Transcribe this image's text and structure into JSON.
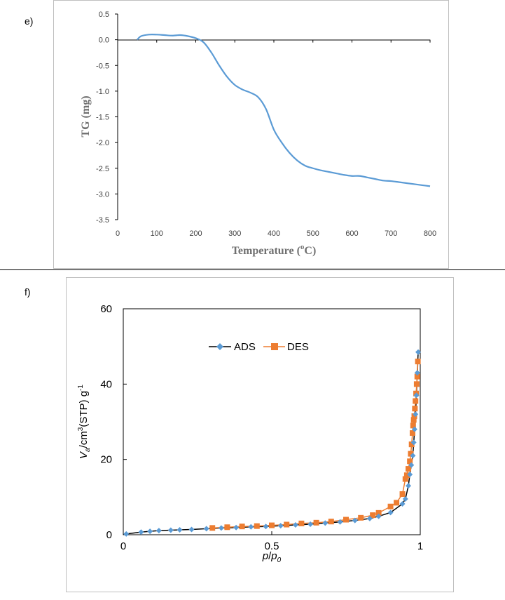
{
  "panels": {
    "e_label": "e)",
    "f_label": "f)"
  },
  "colors": {
    "tg_line": "#5B9BD5",
    "ads": "#5B9BD5",
    "des": "#ED7D31",
    "ads_line": "#000000",
    "frame": "#BFBFBF"
  },
  "chart_data": [
    {
      "type": "line",
      "title": "",
      "xlabel": "Temperature (oC)",
      "xlabel_parts": {
        "pre": "Temperature (",
        "sup": "o",
        "post": "C)"
      },
      "ylabel": "TG (mg)",
      "xlim": [
        0,
        800
      ],
      "ylim": [
        -3.5,
        0.5
      ],
      "x_ticks": [
        "0",
        "100",
        "200",
        "300",
        "400",
        "500",
        "600",
        "700",
        "800"
      ],
      "y_ticks": [
        "0.5",
        "0.0",
        "-0.5",
        "-1.0",
        "-1.5",
        "-2.0",
        "-2.5",
        "-3.0",
        "-3.5"
      ],
      "series": [
        {
          "name": "TG",
          "x": [
            50,
            60,
            80,
            100,
            120,
            140,
            160,
            180,
            200,
            220,
            240,
            260,
            280,
            300,
            320,
            340,
            360,
            380,
            400,
            420,
            440,
            460,
            480,
            500,
            520,
            540,
            560,
            580,
            600,
            620,
            640,
            660,
            680,
            700,
            720,
            740,
            760,
            780,
            800
          ],
          "y": [
            0.0,
            0.07,
            0.1,
            0.1,
            0.09,
            0.08,
            0.09,
            0.07,
            0.03,
            -0.05,
            -0.25,
            -0.5,
            -0.72,
            -0.88,
            -0.97,
            -1.03,
            -1.12,
            -1.35,
            -1.75,
            -2.0,
            -2.2,
            -2.35,
            -2.45,
            -2.5,
            -2.54,
            -2.57,
            -2.6,
            -2.63,
            -2.65,
            -2.65,
            -2.68,
            -2.71,
            -2.74,
            -2.75,
            -2.77,
            -2.79,
            -2.81,
            -2.83,
            -2.85
          ]
        }
      ]
    },
    {
      "type": "line",
      "title": "",
      "xlabel": "p/p0",
      "xlabel_parts": {
        "p": "p",
        "slash": "/",
        "p0": "p",
        "sub": "0"
      },
      "ylabel": "Va/cm3(STP) g-1",
      "ylabel_parts": {
        "v": "V",
        "a": "a",
        "mid": "/cm",
        "cube": "3",
        "stp": "(STP) g",
        "inv": "-1"
      },
      "xlim": [
        0,
        1
      ],
      "ylim": [
        0,
        60
      ],
      "x_ticks": [
        "0",
        "0.5",
        "1"
      ],
      "y_ticks": [
        "0",
        "20",
        "40",
        "60"
      ],
      "legend": "top-center",
      "series": [
        {
          "name": "ADS",
          "marker": "diamond",
          "x": [
            0.01,
            0.06,
            0.09,
            0.12,
            0.16,
            0.19,
            0.23,
            0.28,
            0.33,
            0.38,
            0.43,
            0.48,
            0.53,
            0.58,
            0.63,
            0.68,
            0.73,
            0.78,
            0.83,
            0.86,
            0.9,
            0.94,
            0.95,
            0.96,
            0.965,
            0.97,
            0.975,
            0.978,
            0.981,
            0.984,
            0.987,
            0.99,
            0.993
          ],
          "y": [
            0.2,
            0.7,
            0.9,
            1.1,
            1.2,
            1.3,
            1.4,
            1.6,
            1.8,
            1.9,
            2.1,
            2.2,
            2.4,
            2.6,
            2.8,
            3.1,
            3.4,
            3.8,
            4.3,
            4.9,
            5.9,
            8.2,
            9.5,
            13.0,
            16.0,
            18.5,
            21.0,
            24.5,
            28.0,
            32.0,
            37.0,
            43.0,
            48.5
          ]
        },
        {
          "name": "DES",
          "marker": "square",
          "x": [
            0.3,
            0.35,
            0.4,
            0.45,
            0.5,
            0.55,
            0.6,
            0.65,
            0.7,
            0.75,
            0.8,
            0.84,
            0.86,
            0.9,
            0.92,
            0.94,
            0.95,
            0.955,
            0.96,
            0.965,
            0.968,
            0.971,
            0.974,
            0.976,
            0.978,
            0.98,
            0.982,
            0.984,
            0.986,
            0.988,
            0.99,
            0.992
          ],
          "y": [
            1.8,
            2.0,
            2.2,
            2.3,
            2.5,
            2.7,
            3.0,
            3.2,
            3.5,
            4.0,
            4.5,
            5.2,
            5.8,
            7.5,
            8.5,
            10.8,
            14.8,
            15.8,
            17.5,
            19.5,
            21.5,
            24.0,
            27.0,
            29.0,
            30.5,
            31.5,
            33.5,
            35.5,
            37.5,
            40.0,
            42.0,
            46.0
          ]
        }
      ]
    }
  ]
}
